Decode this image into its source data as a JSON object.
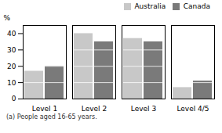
{
  "chart_data": {
    "type": "bar",
    "categories": [
      "Level 1",
      "Level 2",
      "Level 3",
      "Level 4/5"
    ],
    "series": [
      {
        "name": "Australia",
        "color": "#c8c8c8",
        "values": [
          17,
          40,
          37,
          7
        ]
      },
      {
        "name": "Canada",
        "color": "#7a7a7a",
        "values": [
          20,
          35,
          35,
          11
        ]
      }
    ],
    "ylabel": "%",
    "ylim": [
      0,
      45
    ],
    "yticks": [
      0,
      10,
      20,
      30,
      40
    ],
    "grid": false,
    "legend": "upper right",
    "caption": "(a) People aged 16-65 years."
  }
}
